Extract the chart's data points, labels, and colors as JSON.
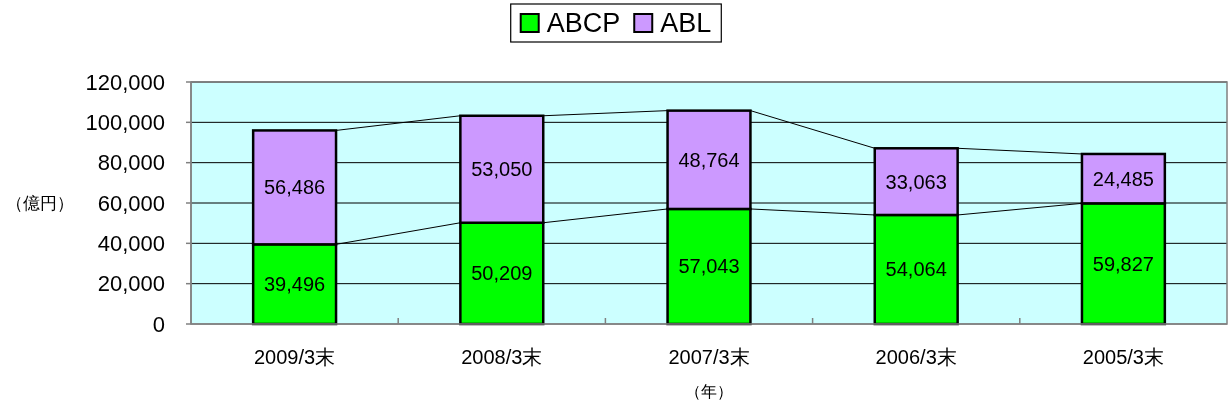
{
  "chart_data": {
    "type": "bar",
    "stacked": true,
    "categories": [
      "2009/3末",
      "2008/3末",
      "2007/3末",
      "2006/3末",
      "2005/3末"
    ],
    "series": [
      {
        "name": "ABCP",
        "color": "#00ff00",
        "values": [
          39496,
          50209,
          57043,
          54064,
          59827
        ],
        "value_labels": [
          "39,496",
          "50,209",
          "57,043",
          "54,064",
          "59,827"
        ]
      },
      {
        "name": "ABL",
        "color": "#cc99ff",
        "values": [
          56486,
          53050,
          48764,
          33063,
          24485
        ],
        "value_labels": [
          "56,486",
          "53,050",
          "48,764",
          "33,063",
          "24,485"
        ]
      }
    ],
    "ylabel": "（億円）",
    "xlabel": "（年）",
    "ylim": [
      0,
      120000
    ],
    "yticks": [
      0,
      {
        "value": 20000,
        "label": "20,000"
      },
      {
        "value": 40000,
        "label": "40,000"
      },
      {
        "value": 60000,
        "label": "60,000"
      },
      {
        "value": 80000,
        "label": "80,000"
      },
      {
        "value": 100000,
        "label": "100,000"
      },
      {
        "value": 120000,
        "label": "120,000"
      }
    ],
    "grid": "y",
    "legend": "top"
  }
}
